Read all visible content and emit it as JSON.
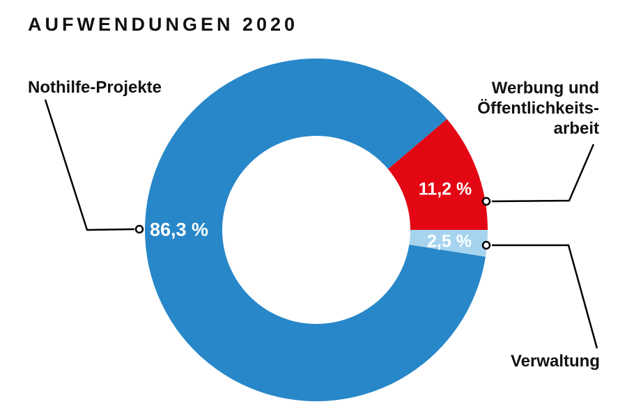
{
  "title": "AUFWENDUNGEN 2020",
  "chart_data": {
    "type": "pie",
    "variant": "donut",
    "title": "AUFWENDUNGEN 2020",
    "unit": "%",
    "decimal_separator": ",",
    "legend_position": "callout-labels",
    "start_angle_deg": 0,
    "direction": "counterclockwise",
    "draw_order": [
      1,
      0,
      2
    ],
    "value_label_color": "#ffffff",
    "slices": [
      {
        "label": "Nothilfe-Projekte",
        "value": 86.3,
        "display": "86,3 %",
        "color": "#2787C8"
      },
      {
        "label": "Werbung und Öffentlichkeitsarbeit",
        "display_lines": [
          "Werbung und",
          "Öffentlichkeits-",
          "arbeit"
        ],
        "value": 11.2,
        "display": "11,2 %",
        "color": "#E30613"
      },
      {
        "label": "Verwaltung",
        "value": 2.5,
        "display": "2,5 %",
        "color": "#A6D4EE"
      }
    ]
  }
}
